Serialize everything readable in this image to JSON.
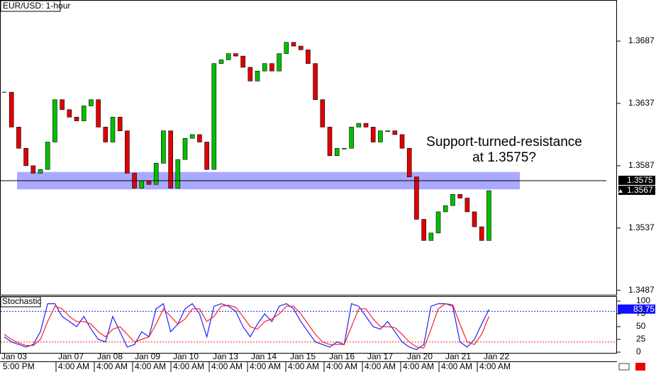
{
  "chart_data": {
    "type": "candlestick",
    "title": "EUR/USD: 1-hour",
    "close": [
      1.3646,
      1.3618,
      1.3601,
      1.3587,
      1.3581,
      1.3584,
      1.3606,
      1.364,
      1.3632,
      1.3626,
      1.3623,
      1.3635,
      1.364,
      1.3618,
      1.3606,
      1.3626,
      1.3615,
      1.3581,
      1.3569,
      1.3575,
      1.3572,
      1.3589,
      1.3615,
      1.3569,
      1.3592,
      1.3609,
      1.3612,
      1.3606,
      1.3584,
      1.3669,
      1.3672,
      1.3677,
      1.3675,
      1.3666,
      1.3655,
      1.3663,
      1.3669,
      1.3663,
      1.3677,
      1.3686,
      1.3683,
      1.368,
      1.3669,
      1.364,
      1.3618,
      1.3595,
      1.3601,
      1.3601,
      1.3618,
      1.3621,
      1.3618,
      1.3606,
      1.3615,
      1.3615,
      1.3612,
      1.3601,
      1.3578,
      1.3544,
      1.3527,
      1.3533,
      1.355,
      1.3555,
      1.3564,
      1.3561,
      1.355,
      1.3538,
      1.3527,
      1.3567
    ],
    "up_color": "#00c000",
    "down_color": "#e00000",
    "ylim": [
      1.3484,
      1.372
    ],
    "yticks": [
      1.3487,
      1.3537,
      1.3587,
      1.3637,
      1.3687
    ],
    "resistance": 1.3575,
    "last": 1.3567,
    "zone": [
      1.3568,
      1.3582
    ],
    "zone_color": "#8c8cff",
    "annotation": [
      "Support-turned-resistance",
      "at 1.3575?"
    ],
    "dates": [
      "Jan 03",
      "Jan 07",
      "Jan 08",
      "Jan 09",
      "Jan 10",
      "Jan 13",
      "Jan 14",
      "Jan 15",
      "Jan 16",
      "Jan 17",
      "Jan 20",
      "Jan 21",
      "Jan 22"
    ],
    "times": [
      "5:00 PM",
      "4:00 AM",
      "4:00 AM",
      "4:00 AM",
      "4:00 AM",
      "4:00 AM",
      "4:00 AM",
      "4:00 AM",
      "4:00 AM",
      "4:00 AM",
      "4:00 AM",
      "4:00 AM",
      "4:00 AM"
    ],
    "stochastic": {
      "title": "Stochastic",
      "ylim": [
        0,
        100
      ],
      "yticks": [
        0,
        25,
        50,
        75,
        100
      ],
      "levels": [
        20,
        80
      ],
      "last": 83.75,
      "series": [
        {
          "color": "#2020ff",
          "values": [
            30,
            20,
            15,
            10,
            15,
            40,
            95,
            95,
            70,
            60,
            50,
            70,
            45,
            25,
            20,
            70,
            40,
            10,
            15,
            40,
            30,
            85,
            95,
            40,
            55,
            85,
            95,
            75,
            30,
            90,
            95,
            90,
            80,
            50,
            30,
            55,
            75,
            60,
            90,
            95,
            85,
            60,
            40,
            20,
            15,
            10,
            20,
            15,
            95,
            90,
            70,
            50,
            45,
            60,
            40,
            20,
            10,
            5,
            15,
            90,
            95,
            95,
            90,
            20,
            10,
            25,
            55,
            83.75
          ]
        },
        {
          "color": "#ff2020",
          "values": [
            35,
            25,
            18,
            13,
            13,
            25,
            60,
            90,
            85,
            70,
            60,
            60,
            55,
            40,
            30,
            45,
            50,
            35,
            20,
            25,
            30,
            55,
            85,
            70,
            55,
            65,
            85,
            85,
            60,
            70,
            90,
            92,
            88,
            70,
            50,
            45,
            60,
            65,
            75,
            90,
            90,
            75,
            55,
            35,
            20,
            15,
            15,
            15,
            50,
            85,
            85,
            65,
            50,
            50,
            48,
            35,
            20,
            10,
            8,
            45,
            85,
            95,
            93,
            55,
            20,
            15,
            35,
            70
          ]
        }
      ]
    }
  }
}
